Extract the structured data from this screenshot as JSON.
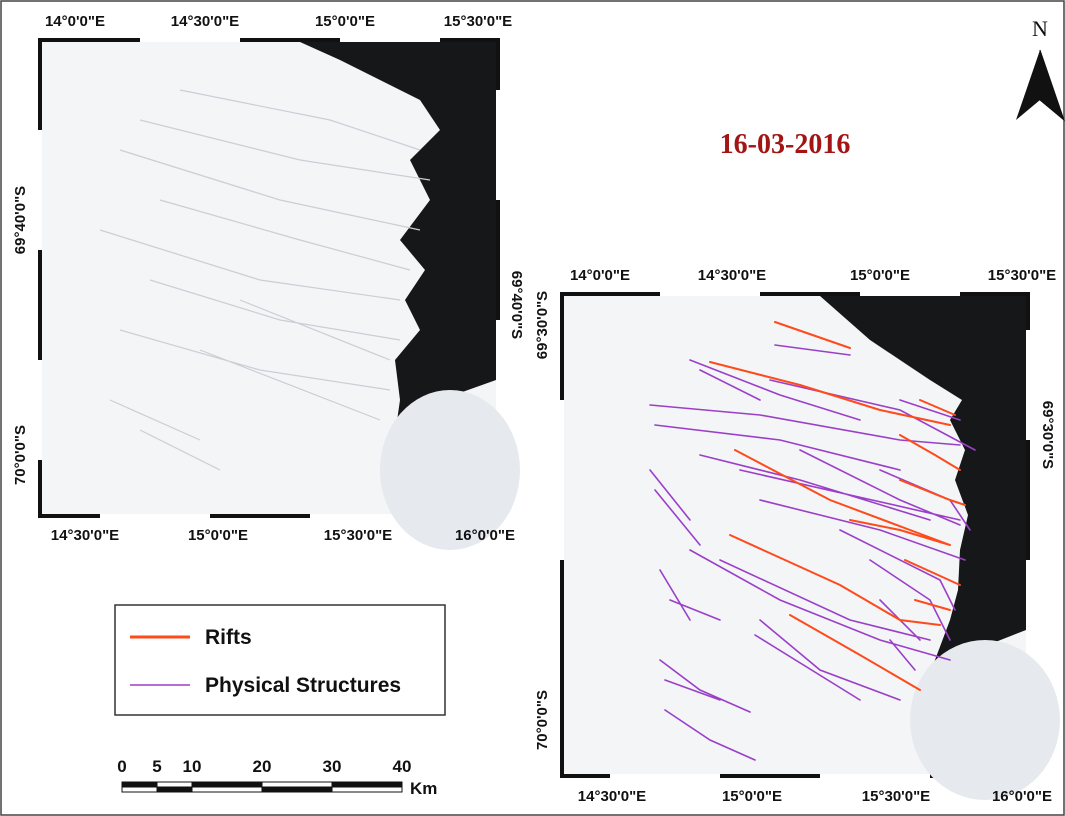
{
  "title": "16-03-2016",
  "north": "N",
  "left_map": {
    "top_labels": [
      "14°0'0\"E",
      "14°30'0\"E",
      "15°0'0\"E",
      "15°30'0\"E"
    ],
    "bottom_labels": [
      "14°30'0\"E",
      "15°0'0\"E",
      "15°30'0\"E",
      "16°0'0\"E"
    ],
    "left_labels": [
      "69°40'0\"S",
      "70°0'0\"S"
    ],
    "right_labels": [
      "69°40'0\"S"
    ]
  },
  "right_map": {
    "top_labels": [
      "14°0'0\"E",
      "14°30'0\"E",
      "15°0'0\"E",
      "15°30'0\"E"
    ],
    "bottom_labels": [
      "14°30'0\"E",
      "15°0'0\"E",
      "15°30'0\"E",
      "16°0'0\"E"
    ],
    "left_labels": [
      "69°30'0\"S",
      "70°0'0\"S"
    ],
    "right_labels": [
      "69°30'0\"S"
    ]
  },
  "legend": {
    "items": [
      {
        "label": "Rifts",
        "color": "#ff4a1c"
      },
      {
        "label": "Physical Structures",
        "color": "#9b3fc8"
      }
    ]
  },
  "scale_bar": {
    "ticks": [
      0,
      5,
      10,
      20,
      30,
      40
    ],
    "unit": "Km"
  }
}
